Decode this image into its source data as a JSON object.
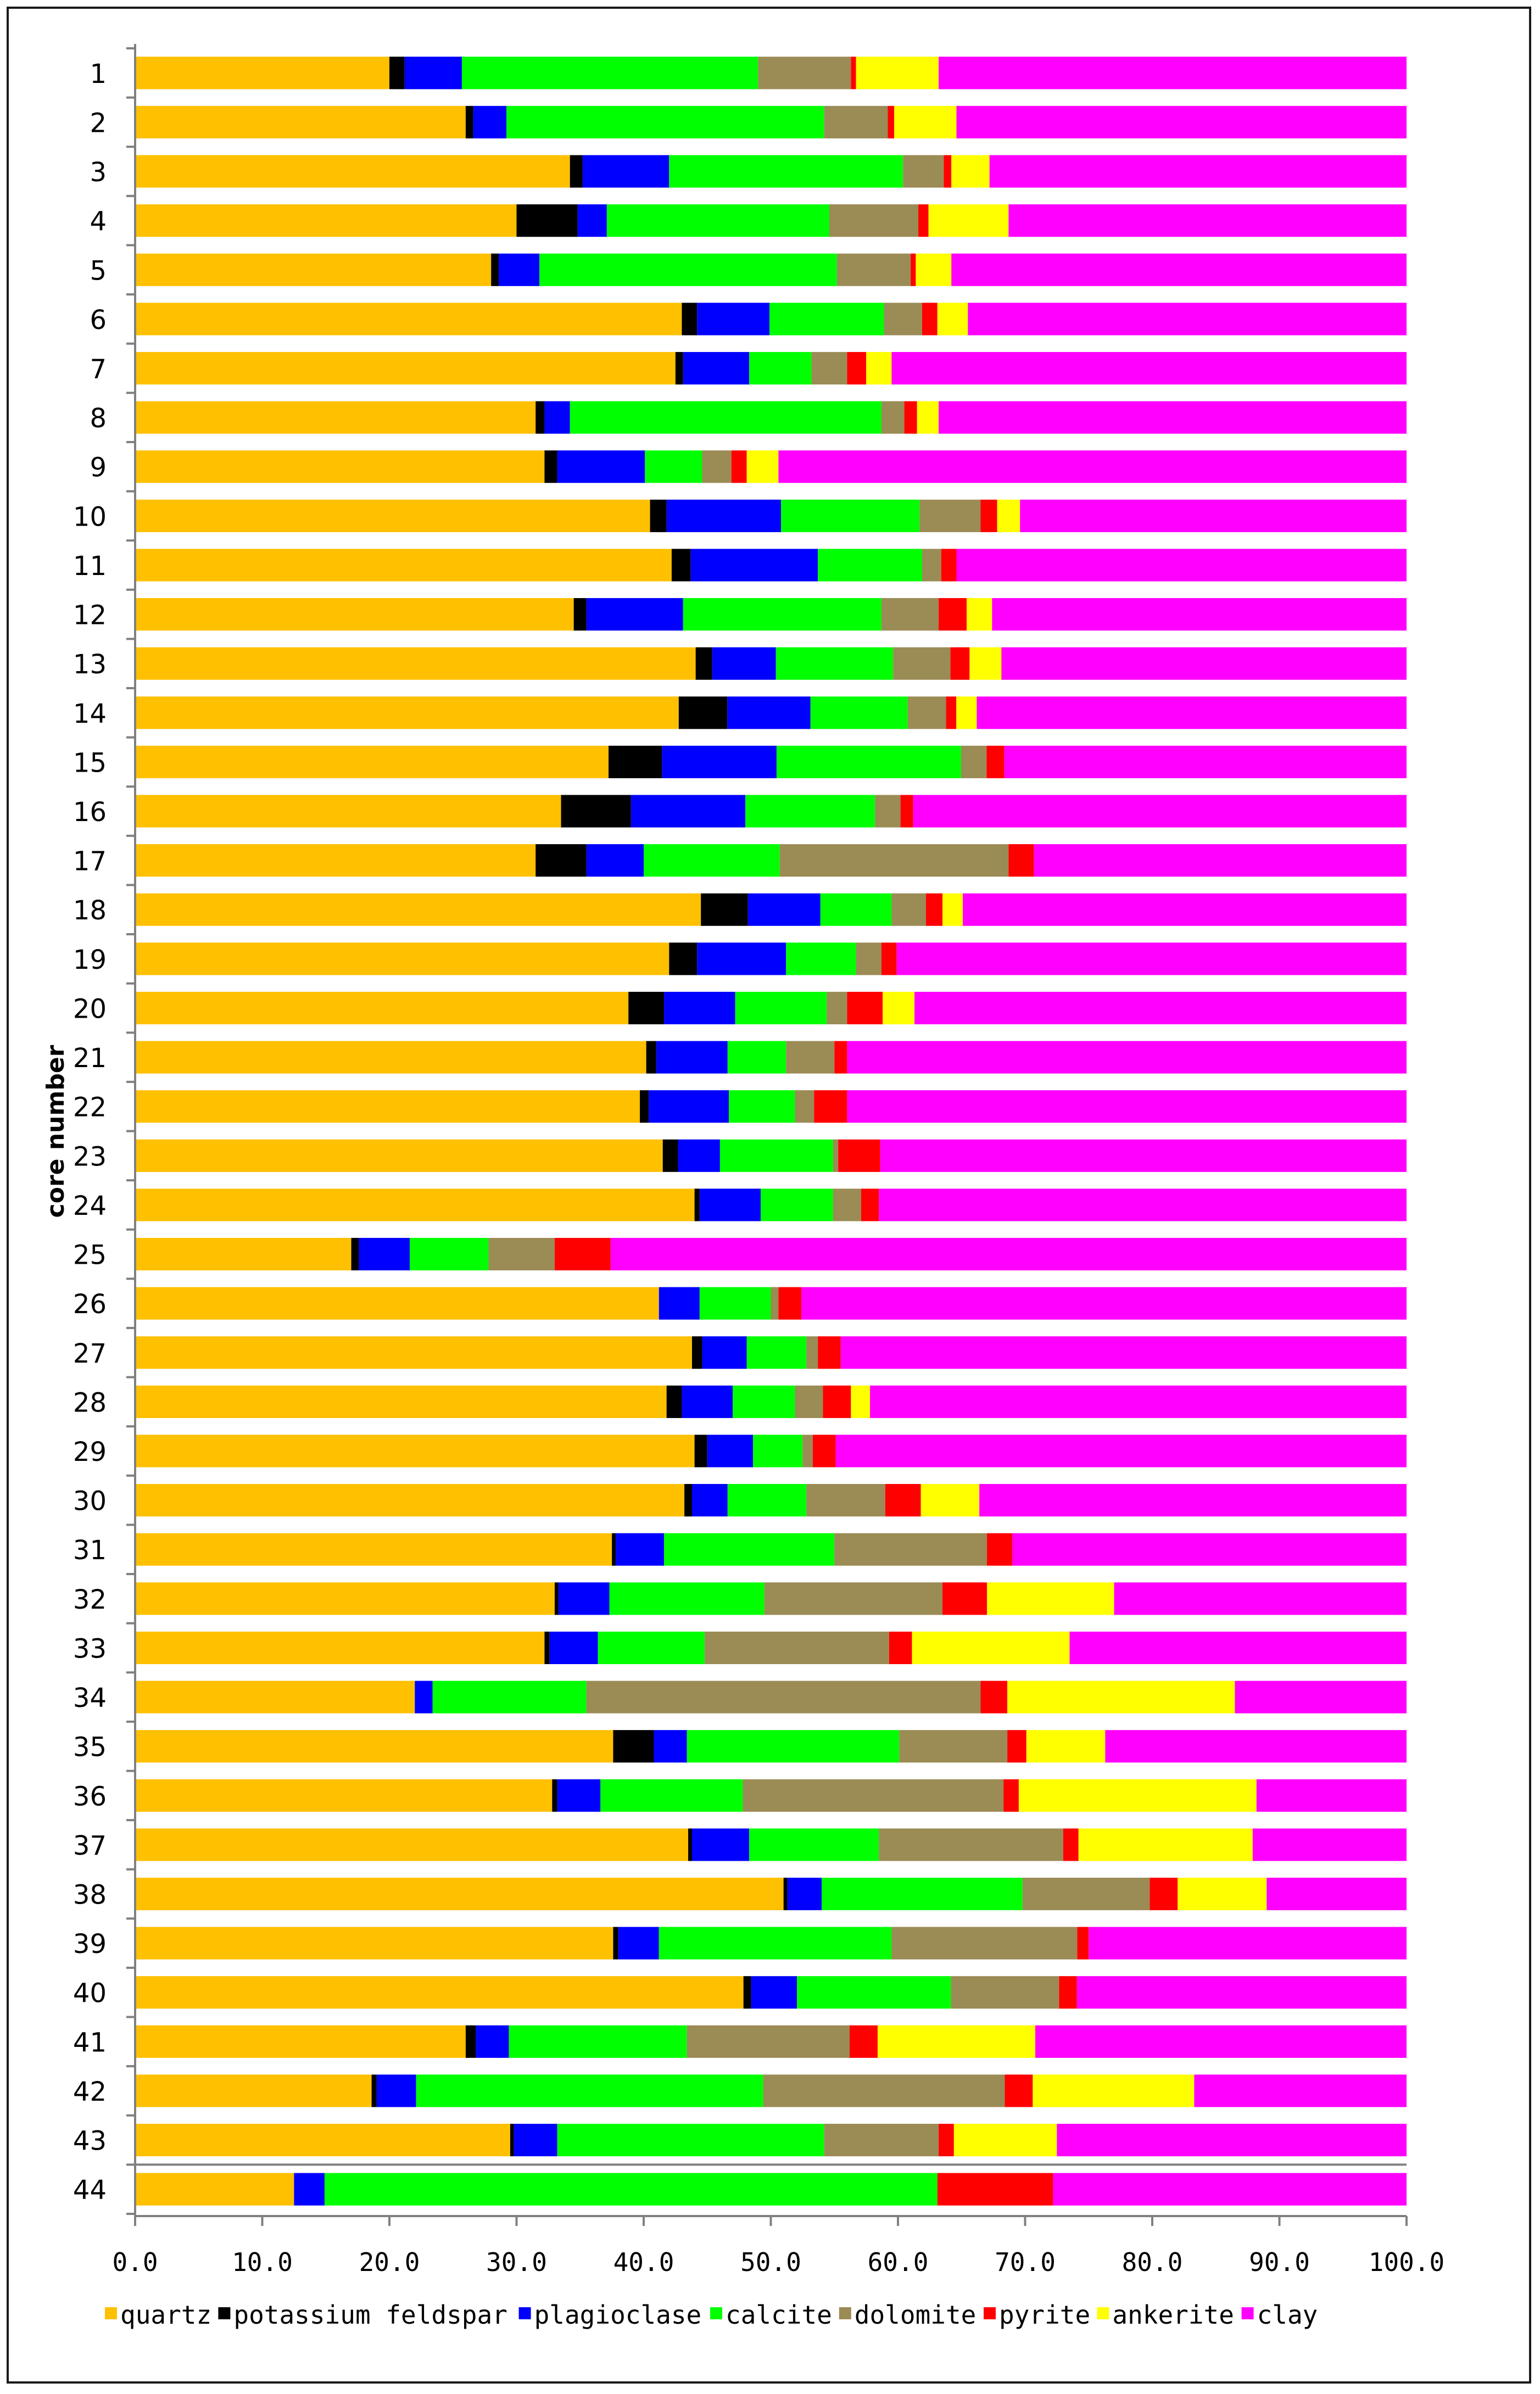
{
  "chart_data": {
    "type": "bar",
    "orientation": "horizontal",
    "stacked": true,
    "title": "",
    "xlabel": "",
    "ylabel": "core number",
    "xlim": [
      0,
      100
    ],
    "x_ticks": [
      "0.0",
      "10.0",
      "20.0",
      "30.0",
      "40.0",
      "50.0",
      "60.0",
      "70.0",
      "80.0",
      "90.0",
      "100.0"
    ],
    "legend_position": "bottom",
    "categories": [
      "1",
      "2",
      "3",
      "4",
      "5",
      "6",
      "7",
      "8",
      "9",
      "10",
      "11",
      "12",
      "13",
      "14",
      "15",
      "16",
      "17",
      "18",
      "19",
      "20",
      "21",
      "22",
      "23",
      "24",
      "25",
      "26",
      "27",
      "28",
      "29",
      "30",
      "31",
      "32",
      "33",
      "34",
      "35",
      "36",
      "37",
      "38",
      "39",
      "40",
      "41",
      "42",
      "43",
      "44"
    ],
    "series": [
      {
        "name": "quartz",
        "color": "#FFC000",
        "values": [
          20.0,
          26.0,
          34.2,
          30.0,
          28.0,
          43.0,
          42.5,
          31.5,
          32.2,
          40.5,
          42.2,
          34.5,
          44.0,
          42.5,
          37.2,
          33.5,
          31.5,
          44.5,
          42.0,
          38.8,
          40.2,
          39.7,
          41.5,
          44.0,
          17.0,
          41.2,
          43.8,
          41.8,
          44.0,
          43.2,
          37.5,
          33.0,
          32.2,
          22.0,
          37.6,
          32.8,
          43.5,
          51.0,
          37.6,
          47.8,
          26.0,
          18.6,
          29.5,
          12.5
        ]
      },
      {
        "name": "potassium feldspar",
        "color": "#000000",
        "values": [
          1.2,
          0.6,
          1.0,
          4.8,
          0.6,
          1.2,
          0.6,
          0.7,
          1.0,
          1.3,
          1.5,
          1.0,
          1.3,
          3.8,
          4.2,
          5.5,
          4.0,
          3.7,
          2.2,
          2.8,
          0.8,
          0.7,
          1.2,
          0.4,
          0.6,
          0.0,
          0.8,
          1.2,
          1.0,
          0.6,
          0.3,
          0.3,
          0.4,
          0.0,
          3.2,
          0.4,
          0.3,
          0.3,
          0.4,
          0.6,
          0.8,
          0.4,
          0.3,
          0.0
        ]
      },
      {
        "name": "plagioclase",
        "color": "#0000FF",
        "values": [
          4.5,
          2.6,
          6.8,
          2.3,
          3.2,
          5.7,
          5.2,
          2.0,
          6.9,
          9.0,
          10.0,
          7.6,
          5.0,
          6.5,
          9.0,
          9.0,
          4.5,
          5.7,
          7.0,
          5.6,
          5.6,
          6.3,
          3.3,
          4.8,
          4.0,
          3.2,
          3.5,
          4.0,
          3.6,
          2.8,
          3.8,
          4.0,
          3.8,
          1.4,
          2.6,
          3.4,
          4.5,
          2.7,
          3.2,
          3.6,
          2.6,
          3.1,
          3.4,
          2.4
        ]
      },
      {
        "name": "calcite",
        "color": "#00FF00",
        "values": [
          23.3,
          25.0,
          18.4,
          17.5,
          23.4,
          9.0,
          4.9,
          24.5,
          4.5,
          10.9,
          8.2,
          15.6,
          9.2,
          7.6,
          14.5,
          10.2,
          10.7,
          5.6,
          5.5,
          7.2,
          4.6,
          5.2,
          8.9,
          5.7,
          6.2,
          5.6,
          4.7,
          4.9,
          3.9,
          6.2,
          13.4,
          12.2,
          8.4,
          12.1,
          16.7,
          11.2,
          10.2,
          15.8,
          18.3,
          12.1,
          14.0,
          27.3,
          21.0,
          48.2
        ]
      },
      {
        "name": "dolomite",
        "color": "#9B8B55",
        "values": [
          7.3,
          5.0,
          3.2,
          7.0,
          5.8,
          3.0,
          2.8,
          1.8,
          2.3,
          4.8,
          1.5,
          4.5,
          4.5,
          3.0,
          2.0,
          2.0,
          18.0,
          2.7,
          2.0,
          1.6,
          3.8,
          1.5,
          0.4,
          2.2,
          5.2,
          0.6,
          0.9,
          2.2,
          0.8,
          6.2,
          12.0,
          14.0,
          14.5,
          31.0,
          8.5,
          20.5,
          14.5,
          10.0,
          14.6,
          8.5,
          12.8,
          19.0,
          9.0,
          0.0
        ]
      },
      {
        "name": "pyrite",
        "color": "#FF0000",
        "values": [
          0.4,
          0.5,
          0.6,
          0.8,
          0.4,
          1.2,
          1.5,
          1.0,
          1.2,
          1.3,
          1.2,
          2.2,
          1.5,
          0.8,
          1.4,
          1.0,
          2.0,
          1.3,
          1.2,
          2.8,
          1.0,
          2.6,
          3.3,
          1.4,
          4.4,
          1.8,
          1.8,
          2.2,
          1.8,
          2.8,
          2.0,
          3.5,
          1.8,
          2.1,
          1.5,
          1.2,
          1.2,
          2.2,
          0.9,
          1.4,
          2.2,
          2.2,
          1.2,
          9.1
        ]
      },
      {
        "name": "ankerite",
        "color": "#FFFF00",
        "values": [
          6.5,
          4.9,
          3.0,
          6.3,
          2.8,
          2.4,
          2.0,
          1.7,
          2.5,
          1.8,
          0.0,
          2.0,
          2.5,
          1.6,
          0.0,
          0.0,
          0.0,
          1.6,
          0.0,
          2.5,
          0.0,
          0.0,
          0.0,
          0.0,
          0.0,
          0.0,
          0.0,
          1.5,
          0.0,
          4.6,
          0.0,
          10.0,
          12.4,
          17.9,
          6.2,
          18.7,
          13.7,
          7.0,
          0.0,
          0.0,
          12.4,
          12.7,
          8.1,
          0.0
        ]
      },
      {
        "name": "clay",
        "color": "#FF00FF",
        "values": [
          36.8,
          35.4,
          32.8,
          31.3,
          35.8,
          34.5,
          40.5,
          36.8,
          49.4,
          30.4,
          35.4,
          32.6,
          31.8,
          33.6,
          31.6,
          38.8,
          29.3,
          34.9,
          40.1,
          38.7,
          44.0,
          44.0,
          41.4,
          41.5,
          62.6,
          47.6,
          44.5,
          42.2,
          44.9,
          33.6,
          31.0,
          23.0,
          26.5,
          13.5,
          23.7,
          11.8,
          12.1,
          11.0,
          25.0,
          25.9,
          29.2,
          16.7,
          27.5,
          27.8
        ]
      }
    ]
  }
}
